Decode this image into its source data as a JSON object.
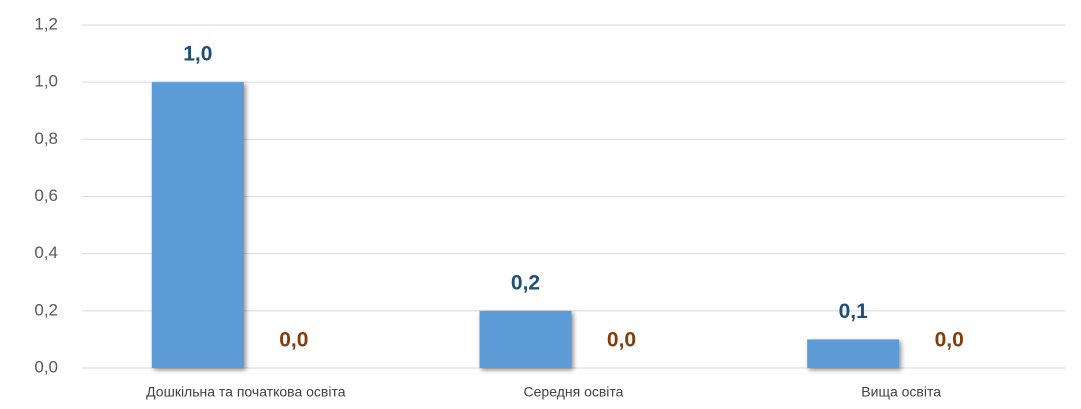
{
  "chart_data": {
    "type": "bar",
    "categories": [
      "Дошкільна та початкова освіта",
      "Середня освіта",
      "Вища освіта"
    ],
    "series": [
      {
        "color": "#5b9bd5",
        "label_color": "#1f4e79",
        "values": [
          1.0,
          0.2,
          0.1
        ],
        "value_labels": [
          "1,0",
          "0,2",
          "0,1"
        ]
      },
      {
        "color": "#ed7d31",
        "label_color": "#843c0c",
        "values": [
          0,
          0,
          0
        ],
        "value_labels": [
          "0,0",
          "0,0",
          "0,0"
        ]
      }
    ],
    "ylim": [
      0,
      1.2
    ],
    "yticks": [
      {
        "value": 0,
        "label": "0,0"
      },
      {
        "value": 0.2,
        "label": "0,2"
      },
      {
        "value": 0.4,
        "label": "0,4"
      },
      {
        "value": 0.6,
        "label": "0,6"
      },
      {
        "value": 0.8,
        "label": "0,8"
      },
      {
        "value": 1.0,
        "label": "1,0"
      },
      {
        "value": 1.2,
        "label": "1,2"
      }
    ],
    "grid": true
  }
}
